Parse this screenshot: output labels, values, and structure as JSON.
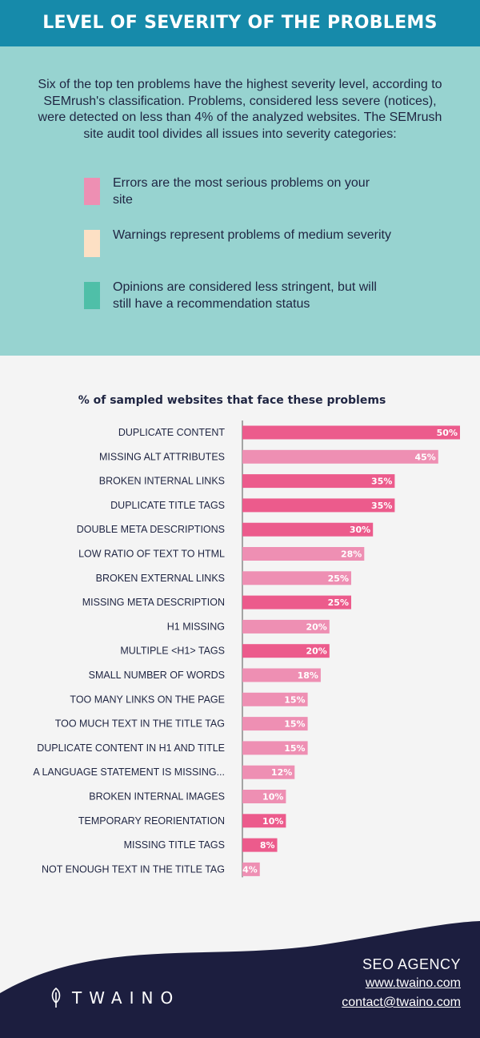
{
  "header": {
    "title": "LEVEL OF SEVERITY OF THE PROBLEMS"
  },
  "intro": {
    "text": "Six of the top ten problems have the highest severity level, according to SEMrush's classification. Problems, considered less severe (notices), were detected on less than 4% of the analyzed websites. The SEMrush site audit tool divides all issues into severity categories:"
  },
  "legend": [
    {
      "label": "Errors are the most serious problems on your site",
      "color": "#ee8fb3"
    },
    {
      "label": "Warnings represent problems of medium severity",
      "color": "#fde0c4"
    },
    {
      "label": "Opinions are considered less stringent, but will still have a recommendation status",
      "color": "#4fbfa8"
    }
  ],
  "colors": {
    "header": "#168aaa",
    "panel": "#97d3d0",
    "bar_dark": "#ec5b8c",
    "bar_light": "#ee8fb3",
    "footer": "#1c1e3f"
  },
  "chart_data": {
    "type": "bar",
    "orientation": "horizontal",
    "title": "% of sampled websites that face these problems",
    "categories": [
      "DUPLICATE CONTENT",
      "MISSING ALT ATTRIBUTES",
      "BROKEN INTERNAL LINKS",
      "DUPLICATE TITLE TAGS",
      "DOUBLE META DESCRIPTIONS",
      "LOW RATIO OF TEXT TO HTML",
      "BROKEN EXTERNAL LINKS",
      "MISSING META DESCRIPTION",
      "H1 MISSING",
      "MULTIPLE <H1> TAGS",
      "SMALL NUMBER OF WORDS",
      "TOO MANY LINKS ON THE PAGE",
      "TOO MUCH TEXT IN THE TITLE TAG",
      "DUPLICATE CONTENT IN H1 AND TITLE",
      "A LANGUAGE STATEMENT IS MISSING...",
      "BROKEN INTERNAL IMAGES",
      "TEMPORARY REORIENTATION",
      "MISSING TITLE TAGS",
      "NOT ENOUGH TEXT IN THE TITLE TAG"
    ],
    "values": [
      50,
      45,
      35,
      35,
      30,
      28,
      25,
      25,
      20,
      20,
      18,
      15,
      15,
      15,
      12,
      10,
      10,
      8,
      4
    ],
    "value_labels": [
      "50%",
      "45%",
      "35%",
      "35%",
      "30%",
      "28%",
      "25%",
      "25%",
      "20%",
      "20%",
      "18%",
      "15%",
      "15%",
      "15%",
      "12%",
      "10%",
      "10%",
      "8%",
      "4%"
    ],
    "bar_tones": [
      "dark",
      "light",
      "dark",
      "dark",
      "dark",
      "light",
      "light",
      "dark",
      "light",
      "dark",
      "light",
      "light",
      "light",
      "light",
      "light",
      "light",
      "dark",
      "dark",
      "light"
    ],
    "xlim": [
      0,
      50
    ]
  },
  "footer": {
    "brand": "TWAINO",
    "agency": "SEO AGENCY",
    "website": "www.twaino.com",
    "email": "contact@twaino.com"
  }
}
